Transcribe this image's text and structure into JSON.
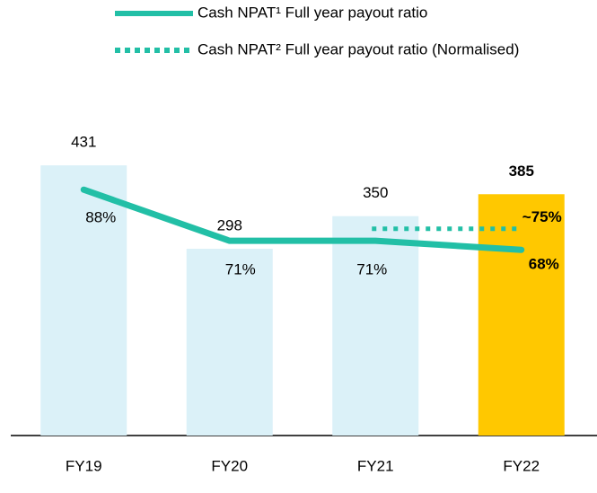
{
  "chart_data": {
    "type": "bar",
    "categories": [
      "FY19",
      "FY20",
      "FY21",
      "FY22"
    ],
    "values": [
      431,
      298,
      350,
      385
    ],
    "colors": [
      "#dbf1f8",
      "#dbf1f8",
      "#dbf1f8",
      "#ffc800"
    ],
    "series": [
      {
        "name": "Cash NPAT¹ Full year payout ratio",
        "color": "#22bfa6",
        "style": "solid",
        "values": [
          88,
          71,
          71,
          68
        ],
        "value_labels": [
          "88%",
          "71%",
          "71%",
          "68%"
        ]
      },
      {
        "name": "Cash NPAT² Full year payout ratio (Normalised)",
        "color": "#22bfa6",
        "style": "dotted",
        "values": [
          null,
          null,
          75,
          75
        ],
        "value_labels": [
          null,
          null,
          null,
          "~75%"
        ]
      }
    ]
  }
}
